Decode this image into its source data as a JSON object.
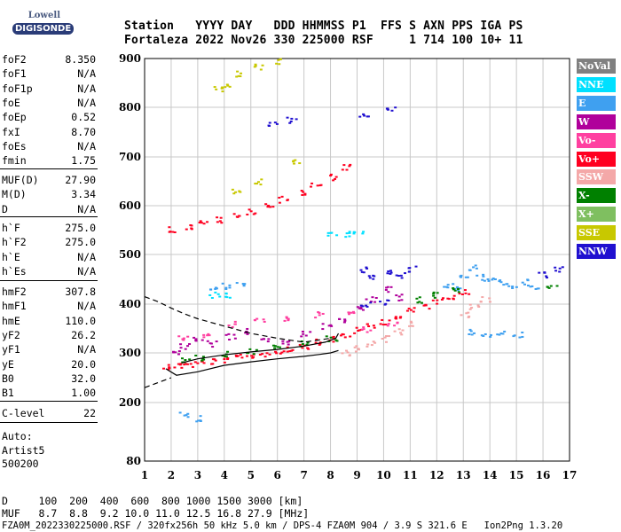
{
  "logo": {
    "top": "Lowell",
    "bottom": "DIGISONDE"
  },
  "header": {
    "line1": "Station   YYYY DAY   DDD HHMMSS P1  FFS S AXN PPS IGA PS",
    "line2": "Fortaleza 2022 Nov26 330 225000 RSF     1 714 100 10+ 11"
  },
  "params": {
    "group1": [
      {
        "name": "foF2",
        "value": "8.350"
      },
      {
        "name": "foF1",
        "value": "N/A"
      },
      {
        "name": "foF1p",
        "value": "N/A"
      },
      {
        "name": "foE",
        "value": "N/A"
      },
      {
        "name": "foEp",
        "value": "0.52"
      },
      {
        "name": "fxI",
        "value": "8.70"
      },
      {
        "name": "foEs",
        "value": "N/A"
      },
      {
        "name": "fmin",
        "value": "1.75"
      }
    ],
    "group2": [
      {
        "name": "MUF(D)",
        "value": "27.90"
      },
      {
        "name": "M(D)",
        "value": "3.34"
      },
      {
        "name": "D",
        "value": "N/A"
      }
    ],
    "group3": [
      {
        "name": "h`F",
        "value": "275.0"
      },
      {
        "name": "h`F2",
        "value": "275.0"
      },
      {
        "name": "h`E",
        "value": "N/A"
      },
      {
        "name": "h`Es",
        "value": "N/A"
      }
    ],
    "group4": [
      {
        "name": "hmF2",
        "value": "307.8"
      },
      {
        "name": "hmF1",
        "value": "N/A"
      },
      {
        "name": "hmE",
        "value": "110.0"
      },
      {
        "name": "yF2",
        "value": "26.2"
      },
      {
        "name": "yF1",
        "value": "N/A"
      },
      {
        "name": "yE",
        "value": "20.0"
      },
      {
        "name": "B0",
        "value": "32.0"
      },
      {
        "name": "B1",
        "value": "1.00"
      }
    ],
    "clevel": {
      "name": "C-level",
      "value": "22"
    },
    "auto": [
      "Auto:",
      "Artist5",
      "500200"
    ]
  },
  "legend": [
    {
      "label": "NoVal",
      "color": "#808080"
    },
    {
      "label": "NNE",
      "color": "#00e0ff"
    },
    {
      "label": "E",
      "color": "#3fa0f0"
    },
    {
      "label": "W",
      "color": "#b0009b"
    },
    {
      "label": "Vo-",
      "color": "#ff40a0"
    },
    {
      "label": "Vo+",
      "color": "#ff0020"
    },
    {
      "label": "SSW",
      "color": "#f4a8a8"
    },
    {
      "label": "X-",
      "color": "#008000"
    },
    {
      "label": "X+",
      "color": "#7fbf60"
    },
    {
      "label": "SSE",
      "color": "#c8c800"
    },
    {
      "label": "NNW",
      "color": "#2010d0"
    }
  ],
  "footer": {
    "line1": "D     100  200  400  600  800 1000 1500 3000 [km]",
    "line2": "MUF   8.7  8.8  9.2 10.0 11.0 12.5 16.8 27.9 [MHz]",
    "line3": "FZA0M_2022330225000.RSF / 320fx256h 50 kHz 5.0 km / DPS-4 FZA0M 904 / 3.9 S 321.6 E   Ion2Png 1.3.20"
  },
  "chart_data": {
    "type": "scatter",
    "title": "",
    "xlabel": "",
    "ylabel": "",
    "xlim": [
      1,
      17
    ],
    "ylim": [
      80,
      900
    ],
    "x_ticks": [
      1,
      2,
      3,
      4,
      5,
      6,
      7,
      8,
      9,
      10,
      11,
      12,
      13,
      14,
      15,
      16,
      17
    ],
    "y_ticks": [
      80,
      200,
      300,
      400,
      500,
      600,
      700,
      800,
      900
    ],
    "grid": true,
    "traces": [
      {
        "name": "F2 trace (O)",
        "color": "#ff0020",
        "points": [
          [
            1.8,
            275
          ],
          [
            2.2,
            276
          ],
          [
            2.6,
            278
          ],
          [
            3.0,
            281
          ],
          [
            3.5,
            284
          ],
          [
            4.0,
            288
          ],
          [
            4.5,
            292
          ],
          [
            5.0,
            296
          ],
          [
            5.5,
            300
          ],
          [
            6.0,
            305
          ],
          [
            6.5,
            310
          ],
          [
            7.0,
            316
          ],
          [
            7.5,
            323
          ],
          [
            8.0,
            330
          ],
          [
            8.5,
            338
          ],
          [
            9.0,
            347
          ],
          [
            9.5,
            356
          ],
          [
            10.0,
            366
          ],
          [
            10.5,
            376
          ],
          [
            11.0,
            388
          ],
          [
            11.5,
            398
          ],
          [
            12.0,
            408
          ],
          [
            12.5,
            418
          ],
          [
            13.0,
            425
          ]
        ]
      },
      {
        "name": "second hop",
        "color": "#ff0020",
        "points": [
          [
            2.0,
            553
          ],
          [
            2.6,
            558
          ],
          [
            3.2,
            565
          ],
          [
            3.8,
            572
          ],
          [
            4.4,
            580
          ],
          [
            5.0,
            590
          ],
          [
            5.6,
            602
          ],
          [
            6.2,
            614
          ],
          [
            6.8,
            628
          ],
          [
            7.4,
            643
          ],
          [
            8.0,
            660
          ],
          [
            8.6,
            680
          ]
        ]
      },
      {
        "name": "W spread",
        "color": "#b0009b",
        "points": [
          [
            2.2,
            300
          ],
          [
            2.5,
            315
          ],
          [
            3.0,
            330
          ],
          [
            3.5,
            320
          ],
          [
            4.2,
            335
          ],
          [
            4.8,
            345
          ],
          [
            5.5,
            330
          ],
          [
            6.2,
            325
          ],
          [
            7.0,
            340
          ],
          [
            7.8,
            355
          ],
          [
            8.4,
            370
          ],
          [
            9.0,
            390
          ],
          [
            9.5,
            410
          ],
          [
            10.1,
            430
          ],
          [
            10.6,
            415
          ]
        ]
      },
      {
        "name": "E spread",
        "color": "#3fa0f0",
        "points": [
          [
            12.4,
            440
          ],
          [
            12.7,
            430
          ],
          [
            13.0,
            460
          ],
          [
            13.3,
            475
          ],
          [
            13.6,
            455
          ],
          [
            14.0,
            450
          ],
          [
            14.4,
            445
          ],
          [
            14.8,
            440
          ],
          [
            15.2,
            445
          ],
          [
            15.6,
            435
          ],
          [
            13.2,
            345
          ],
          [
            13.8,
            340
          ],
          [
            14.4,
            340
          ],
          [
            15.0,
            338
          ],
          [
            3.5,
            430
          ],
          [
            4.0,
            438
          ],
          [
            4.6,
            440
          ],
          [
            2.4,
            175
          ],
          [
            2.9,
            168
          ]
        ]
      },
      {
        "name": "NNW",
        "color": "#2010d0",
        "points": [
          [
            9.3,
            470
          ],
          [
            9.6,
            455
          ],
          [
            10.2,
            465
          ],
          [
            10.6,
            460
          ],
          [
            11.1,
            472
          ],
          [
            9.3,
            400
          ],
          [
            10.0,
            405
          ],
          [
            16.0,
            460
          ],
          [
            16.6,
            470
          ],
          [
            5.8,
            768
          ],
          [
            6.5,
            775
          ],
          [
            9.2,
            782
          ],
          [
            10.2,
            800
          ]
        ]
      },
      {
        "name": "X-",
        "color": "#008000",
        "points": [
          [
            2.5,
            285
          ],
          [
            3.0,
            292
          ],
          [
            4.0,
            298
          ],
          [
            5.0,
            305
          ],
          [
            6.0,
            312
          ],
          [
            7.0,
            320
          ],
          [
            8.0,
            330
          ],
          [
            11.2,
            410
          ],
          [
            11.8,
            420
          ],
          [
            12.6,
            430
          ],
          [
            16.3,
            440
          ]
        ]
      },
      {
        "name": "Vo-",
        "color": "#ff40a0",
        "points": [
          [
            2.4,
            330
          ],
          [
            3.3,
            340
          ],
          [
            4.3,
            360
          ],
          [
            5.3,
            370
          ],
          [
            6.3,
            372
          ],
          [
            7.5,
            380
          ],
          [
            8.7,
            385
          ],
          [
            9.3,
            348
          ],
          [
            10.3,
            362
          ]
        ]
      },
      {
        "name": "SSE",
        "color": "#c8c800",
        "points": [
          [
            4.0,
            845
          ],
          [
            4.6,
            870
          ],
          [
            5.3,
            885
          ],
          [
            6.0,
            895
          ],
          [
            3.7,
            840
          ],
          [
            4.4,
            630
          ],
          [
            5.2,
            650
          ],
          [
            6.6,
            690
          ]
        ]
      },
      {
        "name": "NNE",
        "color": "#00e0ff",
        "points": [
          [
            8.0,
            545
          ],
          [
            8.5,
            543
          ],
          [
            9.0,
            545
          ],
          [
            3.6,
            420
          ],
          [
            4.2,
            418
          ]
        ]
      },
      {
        "name": "SSW",
        "color": "#f4a8a8",
        "points": [
          [
            8.5,
            300
          ],
          [
            9.0,
            310
          ],
          [
            9.5,
            320
          ],
          [
            10.0,
            330
          ],
          [
            10.5,
            345
          ],
          [
            11.0,
            360
          ],
          [
            13.0,
            380
          ],
          [
            13.4,
            395
          ],
          [
            13.8,
            410
          ]
        ]
      }
    ],
    "curves": [
      {
        "name": "dashed upper",
        "style": "dashed",
        "points": [
          [
            1,
            415
          ],
          [
            1.5,
            405
          ],
          [
            2,
            392
          ],
          [
            2.5,
            380
          ],
          [
            3,
            370
          ],
          [
            4,
            355
          ],
          [
            5,
            340
          ],
          [
            6,
            330
          ],
          [
            7,
            322
          ],
          [
            8,
            330
          ]
        ]
      },
      {
        "name": "dashed lower",
        "style": "dashed",
        "points": [
          [
            1,
            230
          ],
          [
            1.5,
            240
          ],
          [
            2,
            250
          ]
        ]
      },
      {
        "name": "solid lower",
        "style": "solid",
        "points": [
          [
            1.8,
            268
          ],
          [
            2.2,
            255
          ],
          [
            3,
            262
          ],
          [
            4,
            275
          ],
          [
            5,
            282
          ],
          [
            6,
            288
          ],
          [
            7,
            293
          ],
          [
            7.6,
            297
          ],
          [
            8.0,
            300
          ],
          [
            8.3,
            305
          ]
        ]
      },
      {
        "name": "solid upper",
        "style": "solid",
        "points": [
          [
            2.4,
            280
          ],
          [
            3,
            288
          ],
          [
            4,
            296
          ],
          [
            5,
            302
          ],
          [
            6,
            307
          ],
          [
            7,
            314
          ],
          [
            7.8,
            322
          ],
          [
            8.2,
            330
          ],
          [
            8.3,
            340
          ]
        ]
      }
    ]
  }
}
